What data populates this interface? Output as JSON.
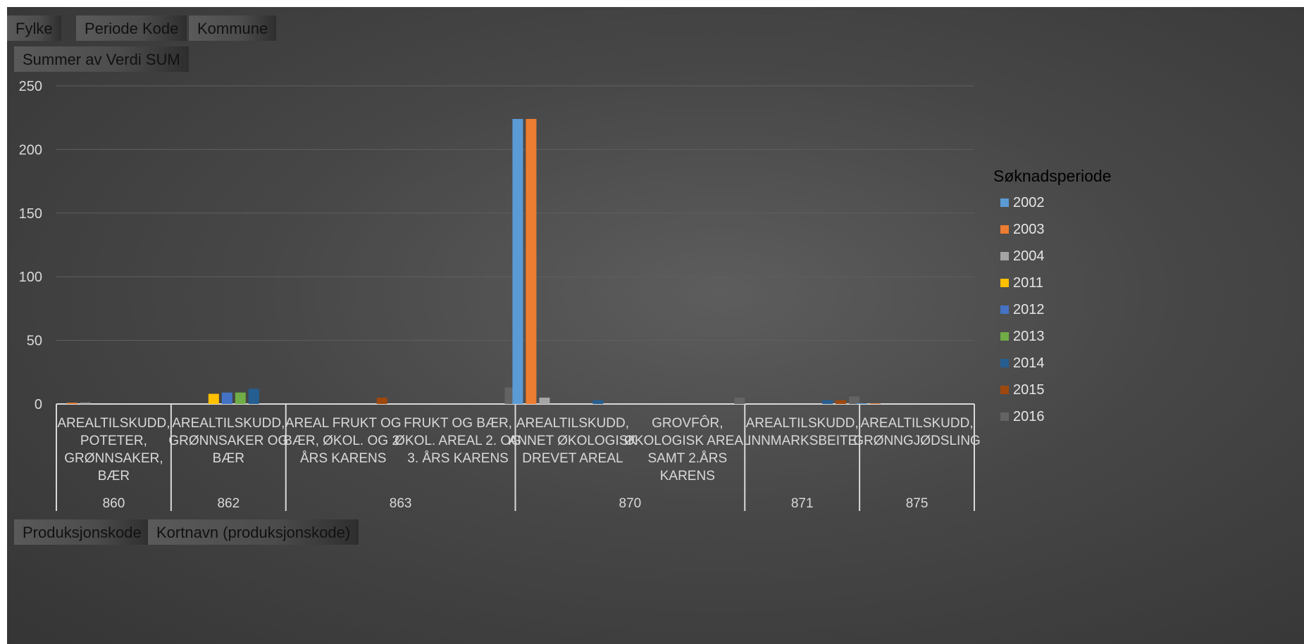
{
  "filters": {
    "top": [
      "Fylke",
      "Periode Kode",
      "Kommune"
    ],
    "value_field": "Summer av Verdi SUM",
    "bottom": [
      "Produksjonskode",
      "Kortnavn (produksjonskode)"
    ]
  },
  "chart_data": {
    "type": "bar",
    "ylim": [
      0,
      250
    ],
    "yticks": [
      0,
      50,
      100,
      150,
      200,
      250
    ],
    "grid": true,
    "legend_position": "right",
    "legend_title": "Søknadsperiode",
    "groups": [
      {
        "code": "860",
        "categories": [
          [
            "AREALTILSKUDD,",
            "POTETER,",
            "GRØNNSAKER,",
            "BÆR"
          ]
        ]
      },
      {
        "code": "862",
        "categories": [
          [
            "AREALTILSKUDD,",
            "GRØNNSAKER OG",
            "BÆR"
          ]
        ]
      },
      {
        "code": "863",
        "categories": [
          [
            "AREAL FRUKT OG",
            "BÆR, ØKOL. OG 2.",
            "ÅRS KARENS"
          ],
          [
            "FRUKT OG BÆR,",
            "ØKOL. AREAL 2. OG",
            "3. ÅRS KARENS"
          ]
        ]
      },
      {
        "code": "870",
        "categories": [
          [
            "AREALTILSKUDD,",
            "ANNET ØKOLOGISK",
            "DREVET AREAL"
          ],
          [
            "GROVFÔR,",
            "ØKOLOGISK AREAL",
            "SAMT 2.ÅRS",
            "KARENS"
          ]
        ]
      },
      {
        "code": "871",
        "categories": [
          [
            "AREALTILSKUDD,",
            "INNMARKSBEITE"
          ]
        ]
      },
      {
        "code": "875",
        "categories": [
          [
            "AREALTILSKUDD,",
            "GRØNNGJØDSLING"
          ]
        ]
      }
    ],
    "series": [
      {
        "name": "2002",
        "color": "#5b9bd5",
        "values": [
          0,
          0,
          0,
          0,
          224,
          0,
          0,
          0.5
        ]
      },
      {
        "name": "2003",
        "color": "#ed7d31",
        "values": [
          1,
          0,
          0,
          0,
          224,
          0,
          0,
          0.5
        ]
      },
      {
        "name": "2004",
        "color": "#a5a5a5",
        "values": [
          1,
          0,
          0,
          0,
          5,
          0,
          0,
          0
        ]
      },
      {
        "name": "2011",
        "color": "#ffc000",
        "values": [
          0,
          8,
          0,
          0,
          0,
          0,
          0,
          0
        ]
      },
      {
        "name": "2012",
        "color": "#4472c4",
        "values": [
          0,
          9,
          0,
          0,
          0,
          0,
          0,
          0
        ]
      },
      {
        "name": "2013",
        "color": "#70ad47",
        "values": [
          0,
          9,
          0,
          0,
          0,
          0,
          0,
          0
        ]
      },
      {
        "name": "2014",
        "color": "#255e91",
        "values": [
          0,
          12,
          0,
          0,
          3,
          0,
          3,
          0
        ]
      },
      {
        "name": "2015",
        "color": "#9e480e",
        "values": [
          0,
          0,
          5,
          0,
          0,
          0,
          3,
          0
        ]
      },
      {
        "name": "2016",
        "color": "#636363",
        "values": [
          0,
          0,
          0,
          13,
          0,
          5,
          6,
          0
        ]
      }
    ]
  }
}
